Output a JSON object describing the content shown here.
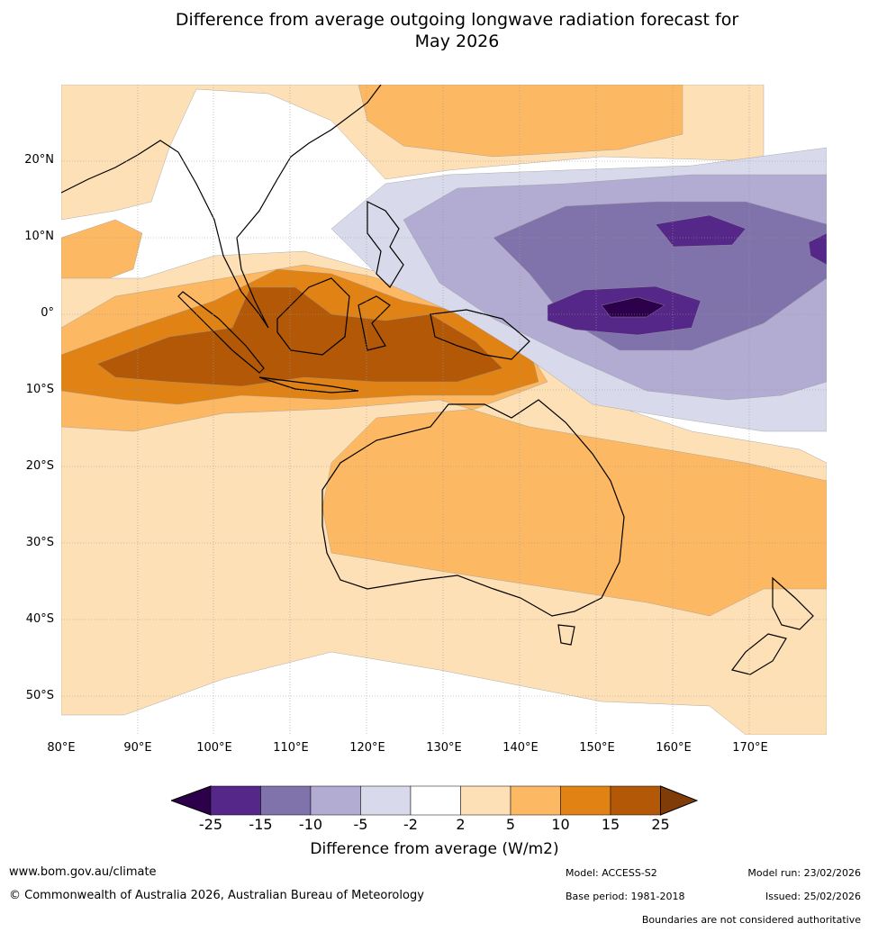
{
  "title_line1": "Difference from average outgoing longwave radiation forecast for",
  "title_line2": "May 2026",
  "map": {
    "lat_labels": [
      "20°N",
      "10°N",
      "0°",
      "10°S",
      "20°S",
      "30°S",
      "40°S",
      "50°S"
    ],
    "lon_labels": [
      "80°E",
      "90°E",
      "100°E",
      "110°E",
      "120°E",
      "130°E",
      "140°E",
      "150°E",
      "160°E",
      "170°E"
    ]
  },
  "colorbar": {
    "ticks": [
      "-25",
      "-15",
      "-10",
      "-5",
      "-2",
      "2",
      "5",
      "10",
      "15",
      "25"
    ],
    "colors": [
      "#2d004b",
      "#542788",
      "#8073ac",
      "#b2abd2",
      "#d8daeb",
      "#ffffff",
      "#fee0b6",
      "#fdb863",
      "#e08214",
      "#b35806",
      "#7f3b08"
    ],
    "label": "Difference from average (W/m2)"
  },
  "footer": {
    "website": "www.bom.gov.au/climate",
    "copyright": "© Commonwealth of Australia 2026, Australian Bureau of Meteorology",
    "model": "Model: ACCESS-S2",
    "base_period": "Base period: 1981-2018",
    "model_run": "Model run: 23/02/2026",
    "issued": "Issued: 25/02/2026",
    "disclaimer": "Boundaries are not considered authoritative"
  }
}
